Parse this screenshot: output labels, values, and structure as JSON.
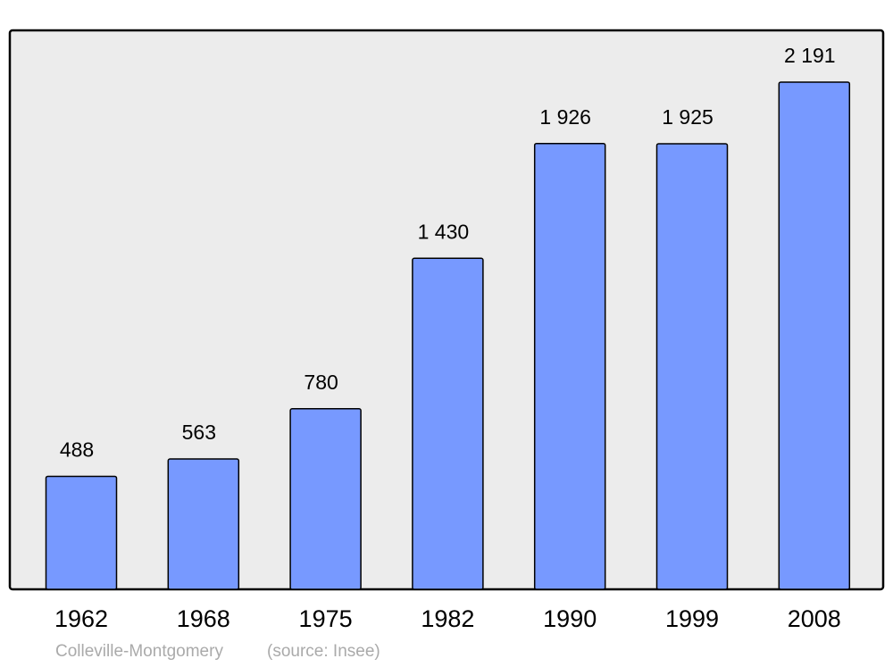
{
  "chart_data": {
    "type": "bar",
    "title": "Colleville-Montgomery",
    "source": "(source: Insee)",
    "categories": [
      "1962",
      "1968",
      "1975",
      "1982",
      "1990",
      "1999",
      "2008"
    ],
    "values": [
      488,
      563,
      780,
      1430,
      1926,
      1925,
      2191
    ],
    "value_labels": [
      "488",
      "563",
      "780",
      "1 430",
      "1 926",
      "1 925",
      "2 191"
    ],
    "color": "#7799ff"
  }
}
